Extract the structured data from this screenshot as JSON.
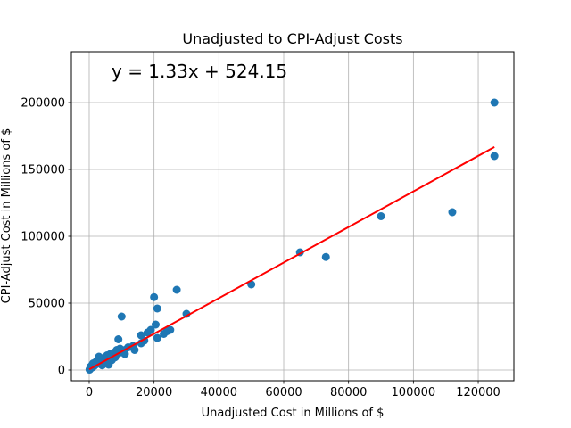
{
  "chart_data": {
    "type": "scatter",
    "title": "Unadjusted to CPI-Adjust Costs",
    "xlabel": "Unadjusted Cost in Millions of $",
    "ylabel": "CPI-Adjust Cost in Millions of $",
    "xlim": [
      -5500,
      131000
    ],
    "ylim": [
      -8000,
      238000
    ],
    "xticks": [
      0,
      20000,
      40000,
      60000,
      80000,
      100000,
      120000
    ],
    "yticks": [
      0,
      50000,
      100000,
      150000,
      200000
    ],
    "xtick_labels": [
      "0",
      "20000",
      "40000",
      "60000",
      "80000",
      "100000",
      "120000"
    ],
    "ytick_labels": [
      "0",
      "50000",
      "100000",
      "150000",
      "200000"
    ],
    "grid": true,
    "annotation": "y = 1.33x + 524.15",
    "annotation_color": "#ff0000",
    "point_color": "#1f77b4",
    "fit_color": "#ff0000",
    "fit": {
      "slope": 1.33,
      "intercept": 524.15,
      "x_range": [
        0,
        125000
      ]
    },
    "points": [
      [
        125000,
        200000
      ],
      [
        125000,
        160000
      ],
      [
        112000,
        118000
      ],
      [
        90000,
        115000
      ],
      [
        73000,
        84500
      ],
      [
        65000,
        88000
      ],
      [
        50000,
        64000
      ],
      [
        30000,
        42000
      ],
      [
        27000,
        60000
      ],
      [
        25000,
        30000
      ],
      [
        24000,
        29000
      ],
      [
        23000,
        27000
      ],
      [
        21000,
        46000
      ],
      [
        20000,
        54500
      ],
      [
        20500,
        34000
      ],
      [
        21000,
        24000
      ],
      [
        19000,
        30000
      ],
      [
        18000,
        28000
      ],
      [
        17000,
        22000
      ],
      [
        16000,
        26000
      ],
      [
        16000,
        20000
      ],
      [
        14000,
        15000
      ],
      [
        13500,
        18000
      ],
      [
        12000,
        17000
      ],
      [
        11000,
        15000
      ],
      [
        10500,
        13000
      ],
      [
        10000,
        40000
      ],
      [
        9500,
        16000
      ],
      [
        9000,
        23000
      ],
      [
        9000,
        12500
      ],
      [
        8500,
        15000
      ],
      [
        8000,
        11000
      ],
      [
        7500,
        13000
      ],
      [
        7000,
        9000
      ],
      [
        6500,
        12000
      ],
      [
        6000,
        8000
      ],
      [
        5500,
        11000
      ],
      [
        5000,
        7000
      ],
      [
        4500,
        9000
      ],
      [
        4000,
        6000
      ],
      [
        3500,
        8000
      ],
      [
        3000,
        10000
      ],
      [
        3000,
        5000
      ],
      [
        2500,
        7000
      ],
      [
        2000,
        4000
      ],
      [
        2000,
        6000
      ],
      [
        1500,
        3000
      ],
      [
        1200,
        5000
      ],
      [
        1000,
        2000
      ],
      [
        800,
        3500
      ],
      [
        500,
        1500
      ],
      [
        400,
        2500
      ],
      [
        300,
        1000
      ],
      [
        200,
        600
      ],
      [
        100,
        300
      ],
      [
        6000,
        4000
      ],
      [
        7000,
        7500
      ],
      [
        8000,
        9500
      ],
      [
        11000,
        12000
      ],
      [
        4000,
        3500
      ]
    ]
  }
}
